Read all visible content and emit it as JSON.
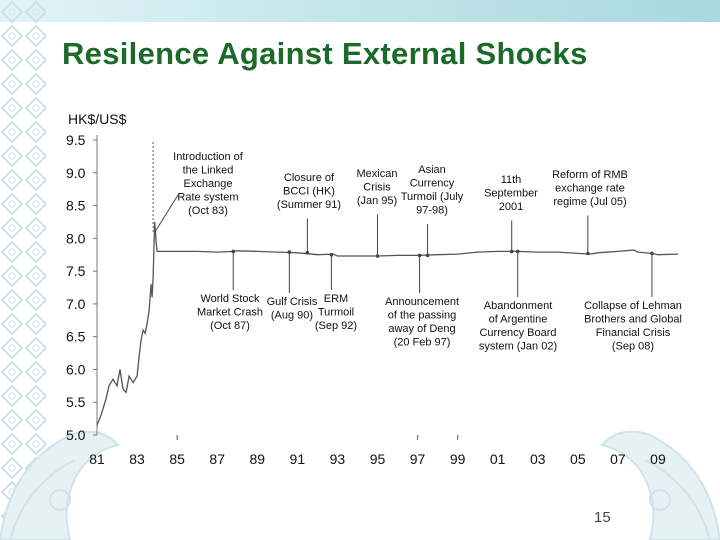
{
  "slide": {
    "title": "Resilence Against External Shocks",
    "page_number": "15"
  },
  "colors": {
    "title": "#1b6a2a",
    "line": "#555555",
    "band": "#c4e6ea",
    "ornament": "#cfe3ea"
  },
  "chart_data": {
    "type": "line",
    "ylabel": "HK$/US$",
    "ylim": [
      5.0,
      9.5
    ],
    "yticks": [
      "9.5",
      "9.0",
      "8.5",
      "8.0",
      "7.5",
      "7.0",
      "6.5",
      "6.0",
      "5.5",
      "5.0"
    ],
    "xlim": [
      1981,
      2010
    ],
    "xticks": [
      "81",
      "83",
      "85",
      "87",
      "89",
      "91",
      "93",
      "95",
      "97",
      "99",
      "01",
      "03",
      "05",
      "07",
      "09"
    ],
    "grid": false,
    "series": [
      {
        "values": [
          [
            1981.0,
            5.15
          ],
          [
            1981.2,
            5.3
          ],
          [
            1981.45,
            5.55
          ],
          [
            1981.6,
            5.75
          ],
          [
            1981.8,
            5.85
          ],
          [
            1982.0,
            5.75
          ],
          [
            1982.15,
            6.0
          ],
          [
            1982.3,
            5.7
          ],
          [
            1982.45,
            5.65
          ],
          [
            1982.6,
            5.9
          ],
          [
            1982.8,
            5.8
          ],
          [
            1983.0,
            5.9
          ],
          [
            1983.1,
            6.2
          ],
          [
            1983.2,
            6.45
          ],
          [
            1983.3,
            6.6
          ],
          [
            1983.4,
            6.55
          ],
          [
            1983.5,
            6.7
          ],
          [
            1983.6,
            6.9
          ],
          [
            1983.7,
            7.3
          ],
          [
            1983.75,
            7.1
          ],
          [
            1983.8,
            7.4
          ],
          [
            1983.88,
            8.25
          ],
          [
            1983.95,
            7.95
          ],
          [
            1984.0,
            7.8
          ],
          [
            1984.5,
            7.8
          ],
          [
            1985.0,
            7.8
          ],
          [
            1986.0,
            7.8
          ],
          [
            1987.0,
            7.79
          ],
          [
            1987.8,
            7.8
          ],
          [
            1988.0,
            7.81
          ],
          [
            1989.0,
            7.8
          ],
          [
            1990.0,
            7.79
          ],
          [
            1991.0,
            7.78
          ],
          [
            1992.0,
            7.75
          ],
          [
            1992.8,
            7.76
          ],
          [
            1993.0,
            7.73
          ],
          [
            1994.0,
            7.73
          ],
          [
            1995.0,
            7.73
          ],
          [
            1996.0,
            7.74
          ],
          [
            1997.0,
            7.74
          ],
          [
            1998.0,
            7.75
          ],
          [
            1999.0,
            7.76
          ],
          [
            2000.0,
            7.79
          ],
          [
            2001.0,
            7.8
          ],
          [
            2002.0,
            7.8
          ],
          [
            2003.0,
            7.79
          ],
          [
            2004.0,
            7.79
          ],
          [
            2005.0,
            7.77
          ],
          [
            2005.6,
            7.76
          ],
          [
            2006.0,
            7.78
          ],
          [
            2007.0,
            7.8
          ],
          [
            2007.8,
            7.82
          ],
          [
            2008.0,
            7.79
          ],
          [
            2008.7,
            7.77
          ],
          [
            2009.0,
            7.75
          ],
          [
            2010.0,
            7.76
          ]
        ]
      }
    ],
    "marker_line": {
      "x": 1983.8
    },
    "annotations": [
      {
        "text": [
          "Introduction of",
          "the Linked",
          "Exchange",
          "Rate system",
          "(Oct 83)"
        ],
        "event_x": 1983.8,
        "event_y": 8.05,
        "side": "above"
      },
      {
        "text": [
          "Closure of",
          "BCCI (HK)",
          "(Summer 91)"
        ],
        "event_x": 1991.5,
        "event_y": 7.78,
        "side": "above"
      },
      {
        "text": [
          "Mexican",
          "Crisis",
          "(Jan 95)"
        ],
        "event_x": 1995.0,
        "event_y": 7.73,
        "side": "above"
      },
      {
        "text": [
          "Asian",
          "Currency",
          "Turmoil (July",
          "97-98)"
        ],
        "event_x": 1997.5,
        "event_y": 7.74,
        "side": "above"
      },
      {
        "text": [
          "11th",
          "September",
          "2001"
        ],
        "event_x": 2001.7,
        "event_y": 7.8,
        "side": "above"
      },
      {
        "text": [
          "Reform of RMB",
          "exchange rate",
          "regime (Jul 05)"
        ],
        "event_x": 2005.5,
        "event_y": 7.77,
        "side": "above"
      },
      {
        "text": [
          "World Stock",
          "Market Crash",
          "(Oct 87)"
        ],
        "event_x": 1987.8,
        "event_y": 7.8,
        "side": "below"
      },
      {
        "text": [
          "Gulf Crisis",
          "(Aug 90)"
        ],
        "event_x": 1990.6,
        "event_y": 7.79,
        "side": "below"
      },
      {
        "text": [
          "ERM",
          "Turmoil",
          "(Sep 92)"
        ],
        "event_x": 1992.7,
        "event_y": 7.75,
        "side": "below"
      },
      {
        "text": [
          "Announcement",
          "of the passing",
          "away of Deng",
          "(20 Feb 97)"
        ],
        "event_x": 1997.1,
        "event_y": 7.74,
        "side": "below"
      },
      {
        "text": [
          "Abandonment",
          "of Argentine",
          "Currency Board",
          "system (Jan 02)"
        ],
        "event_x": 2002.0,
        "event_y": 7.8,
        "side": "below"
      },
      {
        "text": [
          "Collapse of Lehman",
          "Brothers and Global",
          "Financial Crisis",
          "(Sep 08)"
        ],
        "event_x": 2008.7,
        "event_y": 7.77,
        "side": "below"
      }
    ]
  }
}
